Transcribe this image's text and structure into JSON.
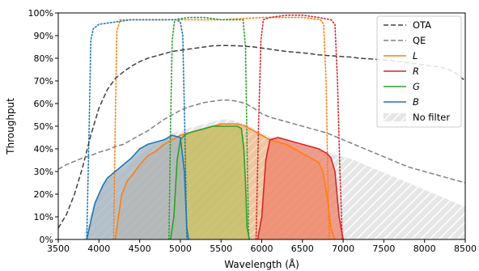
{
  "chart_data": {
    "type": "line",
    "xlabel": "Wavelength (Å)",
    "ylabel": "Throughput",
    "xlim": [
      3500,
      8500
    ],
    "ylim": [
      0,
      1
    ],
    "x_ticks": [
      "3500",
      "4000",
      "4500",
      "5000",
      "5500",
      "6000",
      "6500",
      "7000",
      "7500",
      "8000",
      "8500"
    ],
    "y_ticks": [
      "0%",
      "10%",
      "20%",
      "30%",
      "40%",
      "50%",
      "60%",
      "70%",
      "80%",
      "90%",
      "100%"
    ],
    "grid": false,
    "legend_position": "top-right",
    "legend": [
      {
        "label": "OTA",
        "style": "dashed",
        "color": "#404040",
        "italic": false
      },
      {
        "label": "QE",
        "style": "dashed",
        "color": "#808080",
        "italic": false
      },
      {
        "label": "L",
        "style": "solid",
        "color": "#ff7f0e",
        "italic": true
      },
      {
        "label": "R",
        "style": "solid",
        "color": "#d62728",
        "italic": true
      },
      {
        "label": "G",
        "style": "solid",
        "color": "#2ca02c",
        "italic": true
      },
      {
        "label": "B",
        "style": "solid",
        "color": "#1f77b4",
        "italic": true
      },
      {
        "label": "No filter",
        "style": "hatch",
        "color": "#d9d9d9",
        "italic": false
      }
    ],
    "colors": {
      "ota": "#404040",
      "qe": "#808080",
      "L": "#ff7f0e",
      "R": "#d62728",
      "G": "#2ca02c",
      "B": "#1f77b4",
      "nofilter": "#d9d9d9"
    },
    "ota": {
      "x": [
        3500,
        3600,
        3700,
        3800,
        3900,
        4000,
        4100,
        4200,
        4300,
        4400,
        4500,
        4600,
        4700,
        4800,
        4900,
        5000,
        5100,
        5200,
        5300,
        5400,
        5500,
        5600,
        5700,
        5800,
        5900,
        6000,
        6100,
        6200,
        6300,
        6400,
        6500,
        6600,
        6700,
        6800,
        6900,
        7000,
        7100,
        7200,
        7300,
        7400,
        7500,
        7600,
        7700,
        7800,
        7900,
        8000,
        8100,
        8200,
        8300,
        8400,
        8500
      ],
      "y": [
        0.05,
        0.11,
        0.2,
        0.32,
        0.46,
        0.58,
        0.66,
        0.71,
        0.74,
        0.765,
        0.785,
        0.8,
        0.81,
        0.82,
        0.83,
        0.835,
        0.84,
        0.845,
        0.85,
        0.855,
        0.856,
        0.856,
        0.855,
        0.853,
        0.85,
        0.845,
        0.84,
        0.835,
        0.83,
        0.827,
        0.824,
        0.82,
        0.815,
        0.812,
        0.81,
        0.807,
        0.805,
        0.8,
        0.798,
        0.795,
        0.792,
        0.79,
        0.785,
        0.78,
        0.775,
        0.77,
        0.765,
        0.76,
        0.75,
        0.73,
        0.7
      ]
    },
    "qe": {
      "x": [
        3500,
        3600,
        3700,
        3800,
        3900,
        4000,
        4100,
        4200,
        4300,
        4400,
        4500,
        4600,
        4700,
        4800,
        4900,
        5000,
        5100,
        5200,
        5300,
        5400,
        5500,
        5600,
        5700,
        5800,
        5900,
        6000,
        6100,
        6200,
        6300,
        6400,
        6500,
        6600,
        6700,
        6800,
        6900,
        7000,
        7100,
        7200,
        7300,
        7400,
        7500,
        7600,
        7700,
        7800,
        7900,
        8000,
        8100,
        8200,
        8300,
        8400,
        8500
      ],
      "y": [
        0.31,
        0.33,
        0.345,
        0.36,
        0.37,
        0.385,
        0.395,
        0.41,
        0.42,
        0.44,
        0.46,
        0.48,
        0.505,
        0.53,
        0.55,
        0.57,
        0.585,
        0.595,
        0.605,
        0.61,
        0.615,
        0.615,
        0.61,
        0.6,
        0.58,
        0.555,
        0.54,
        0.53,
        0.52,
        0.51,
        0.5,
        0.49,
        0.48,
        0.47,
        0.455,
        0.44,
        0.425,
        0.41,
        0.395,
        0.38,
        0.365,
        0.35,
        0.335,
        0.32,
        0.31,
        0.3,
        0.29,
        0.28,
        0.27,
        0.26,
        0.25
      ]
    },
    "no_filter": {
      "x": [
        3800,
        3900,
        4000,
        4100,
        4200,
        4300,
        4400,
        4500,
        4600,
        4700,
        4800,
        4900,
        5000,
        5100,
        5200,
        5300,
        5400,
        5500,
        5600,
        5700,
        5800,
        5900,
        6000,
        6100,
        6200,
        6300,
        6400,
        6500,
        6600,
        6700,
        6800,
        6900,
        7000,
        7100,
        7200,
        7300,
        7400,
        7500,
        7600,
        7700,
        7800,
        7900,
        8000,
        8100,
        8200,
        8300,
        8400,
        8500
      ],
      "y": [
        0.0,
        0.12,
        0.21,
        0.26,
        0.29,
        0.31,
        0.34,
        0.37,
        0.4,
        0.42,
        0.44,
        0.47,
        0.48,
        0.49,
        0.5,
        0.51,
        0.52,
        0.53,
        0.53,
        0.52,
        0.51,
        0.49,
        0.47,
        0.455,
        0.44,
        0.43,
        0.42,
        0.41,
        0.4,
        0.395,
        0.385,
        0.375,
        0.365,
        0.355,
        0.34,
        0.325,
        0.31,
        0.295,
        0.28,
        0.265,
        0.25,
        0.235,
        0.22,
        0.205,
        0.19,
        0.175,
        0.16,
        0.145
      ]
    },
    "series": [
      {
        "name": "L",
        "x": [
          4200,
          4240,
          4280,
          4350,
          4400,
          4500,
          4600,
          4700,
          4800,
          4900,
          5000,
          5100,
          5200,
          5300,
          5400,
          5500,
          5600,
          5700,
          5800,
          5900,
          6000,
          6100,
          6200,
          6300,
          6400,
          6500,
          6600,
          6700,
          6750,
          6800,
          6850,
          6900
        ],
        "y": [
          0,
          0.1,
          0.2,
          0.26,
          0.28,
          0.33,
          0.37,
          0.39,
          0.42,
          0.44,
          0.46,
          0.47,
          0.48,
          0.49,
          0.5,
          0.51,
          0.51,
          0.51,
          0.5,
          0.48,
          0.46,
          0.44,
          0.43,
          0.42,
          0.4,
          0.38,
          0.36,
          0.34,
          0.3,
          0.2,
          0.05,
          0
        ]
      },
      {
        "name": "R",
        "x": [
          5950,
          6000,
          6050,
          6100,
          6200,
          6300,
          6400,
          6500,
          6600,
          6700,
          6800,
          6850,
          6900,
          6950,
          7000
        ],
        "y": [
          0,
          0.1,
          0.35,
          0.44,
          0.45,
          0.44,
          0.43,
          0.42,
          0.41,
          0.4,
          0.38,
          0.36,
          0.3,
          0.1,
          0
        ],
        "fill": "#ed8069"
      },
      {
        "name": "G",
        "x": [
          4880,
          4920,
          4960,
          5000,
          5050,
          5100,
          5200,
          5300,
          5400,
          5500,
          5600,
          5700,
          5750,
          5780,
          5800,
          5820,
          5850
        ],
        "y": [
          0,
          0.1,
          0.35,
          0.44,
          0.46,
          0.47,
          0.48,
          0.49,
          0.5,
          0.5,
          0.5,
          0.5,
          0.49,
          0.4,
          0.25,
          0.05,
          0
        ],
        "fill": "#bdbf62"
      },
      {
        "name": "B",
        "x": [
          3850,
          3900,
          3950,
          4000,
          4050,
          4100,
          4200,
          4300,
          4400,
          4500,
          4600,
          4700,
          4800,
          4900,
          5000,
          5050,
          5080,
          5100
        ],
        "y": [
          0,
          0.08,
          0.16,
          0.2,
          0.24,
          0.27,
          0.3,
          0.33,
          0.36,
          0.4,
          0.42,
          0.43,
          0.44,
          0.46,
          0.45,
          0.3,
          0.05,
          0
        ],
        "fill": "#a2b3c0"
      }
    ],
    "dotted_curves": [
      {
        "name": "L",
        "x": [
          4180,
          4200,
          4220,
          4260,
          4350,
          4600,
          5000,
          5500,
          6000,
          6500,
          6720,
          6760,
          6790,
          6810,
          6830
        ],
        "y": [
          0,
          0.5,
          0.92,
          0.97,
          0.97,
          0.97,
          0.97,
          0.97,
          0.98,
          0.98,
          0.97,
          0.95,
          0.7,
          0.3,
          0
        ]
      },
      {
        "name": "R",
        "x": [
          5930,
          5960,
          5990,
          6020,
          6100,
          6300,
          6500,
          6700,
          6850,
          6900,
          6930,
          6960,
          6990
        ],
        "y": [
          0,
          0.5,
          0.88,
          0.97,
          0.98,
          0.99,
          0.99,
          0.98,
          0.97,
          0.95,
          0.7,
          0.3,
          0
        ]
      },
      {
        "name": "G",
        "x": [
          4860,
          4880,
          4900,
          4930,
          5100,
          5300,
          5500,
          5700,
          5770,
          5800,
          5820,
          5840
        ],
        "y": [
          0,
          0.5,
          0.88,
          0.97,
          0.98,
          0.98,
          0.97,
          0.97,
          0.97,
          0.85,
          0.4,
          0
        ]
      },
      {
        "name": "B",
        "x": [
          3850,
          3880,
          3900,
          3930,
          4000,
          4200,
          4400,
          4600,
          4800,
          4950,
          5000,
          5030,
          5060,
          5080
        ],
        "y": [
          0,
          0.5,
          0.88,
          0.93,
          0.95,
          0.96,
          0.97,
          0.97,
          0.97,
          0.97,
          0.96,
          0.9,
          0.4,
          0
        ]
      }
    ]
  }
}
